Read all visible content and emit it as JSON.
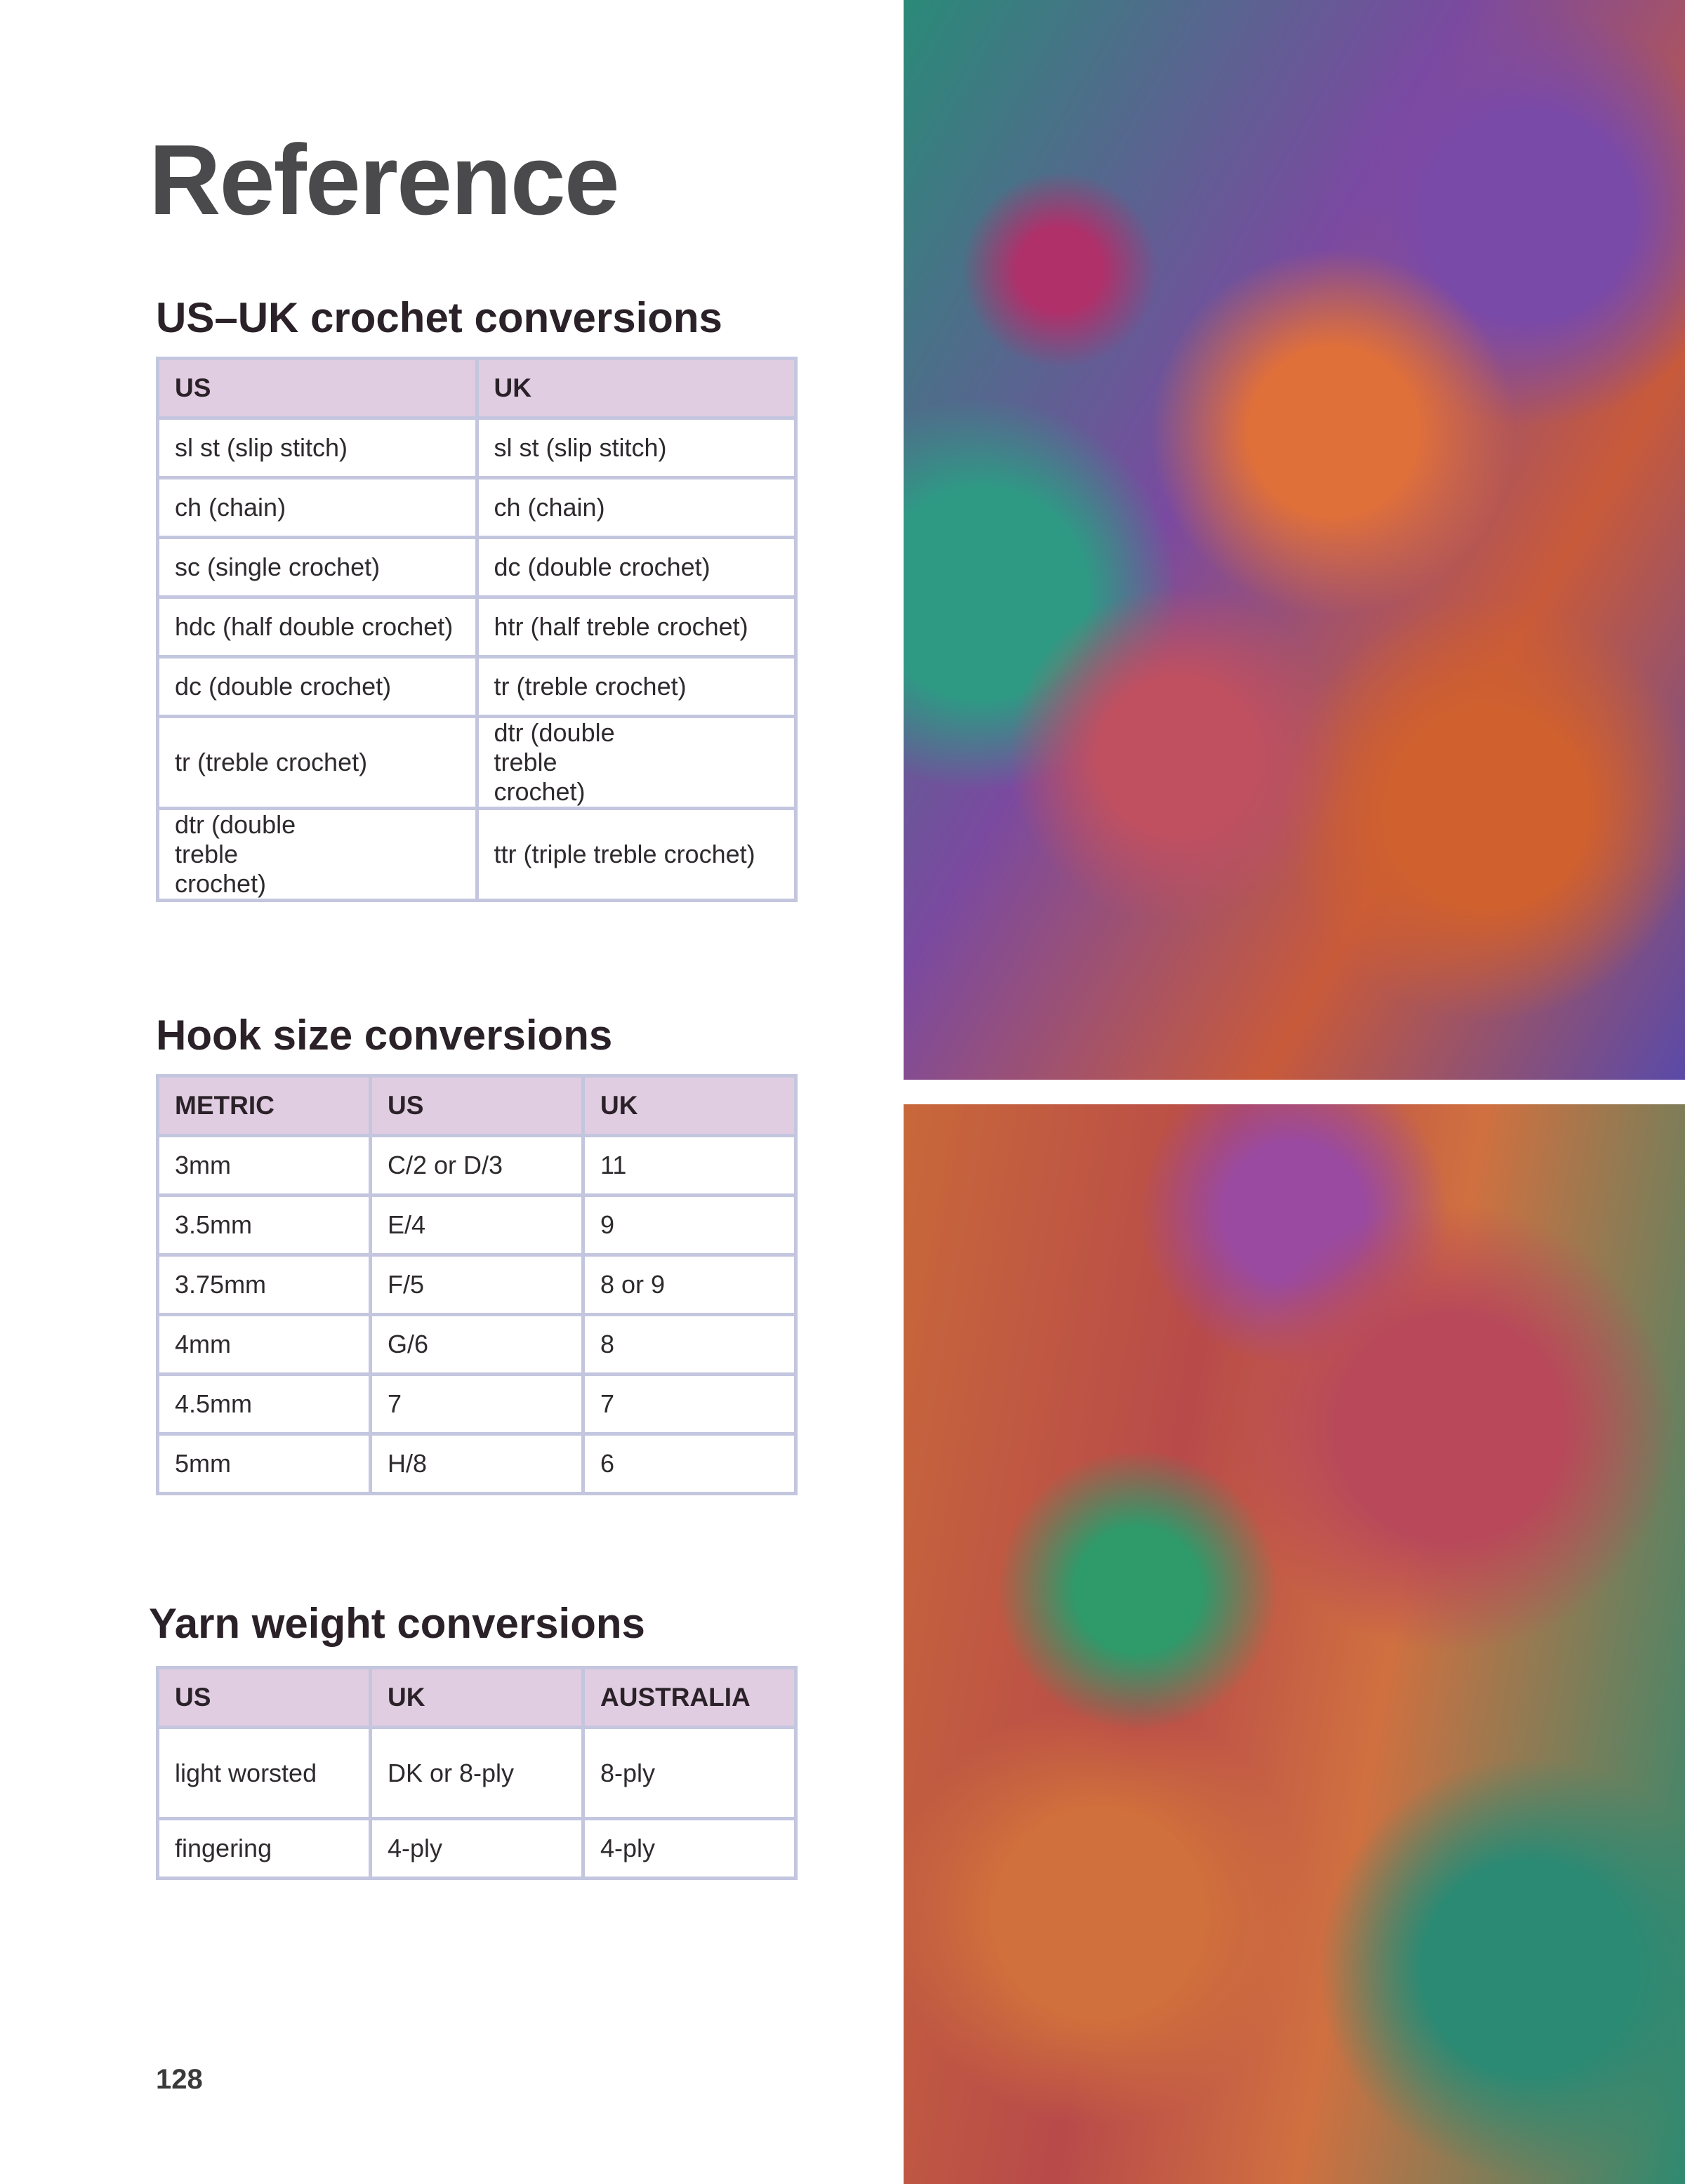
{
  "page": {
    "title": "Reference",
    "page_number": "128"
  },
  "sections": {
    "crochet": {
      "heading": "US–UK crochet conversions",
      "headers": [
        "US",
        "UK"
      ],
      "rows": [
        [
          "sl st (slip stitch)",
          "sl st (slip stitch)"
        ],
        [
          "ch (chain)",
          "ch (chain)"
        ],
        [
          "sc (single crochet)",
          "dc (double crochet)"
        ],
        [
          "hdc (half double crochet)",
          "htr (half treble crochet)"
        ],
        [
          "dc (double crochet)",
          "tr (treble crochet)"
        ],
        [
          "tr (treble crochet)",
          "dtr (double treble crochet)"
        ],
        [
          "dtr (double treble crochet)",
          "ttr (triple treble crochet)"
        ]
      ]
    },
    "hook": {
      "heading": "Hook size conversions",
      "headers": [
        "METRIC",
        "US",
        "UK"
      ],
      "rows": [
        [
          "3mm",
          "C/2 or D/3",
          "11"
        ],
        [
          "3.5mm",
          "E/4",
          "9"
        ],
        [
          "3.75mm",
          "F/5",
          "8 or 9"
        ],
        [
          "4mm",
          "G/6",
          "8"
        ],
        [
          "4.5mm",
          "7",
          "7"
        ],
        [
          "5mm",
          "H/8",
          "6"
        ]
      ]
    },
    "yarn": {
      "heading": "Yarn weight conversions",
      "headers": [
        "US",
        "UK",
        "AUSTRALIA"
      ],
      "rows": [
        [
          "light worsted",
          "DK or 8-ply",
          "8-ply"
        ],
        [
          "fingering",
          "4-ply",
          "4-ply"
        ]
      ]
    }
  },
  "colors": {
    "header_bg": "#e1cde1",
    "border": "#c3c6de",
    "title": "#4a4a4c"
  }
}
